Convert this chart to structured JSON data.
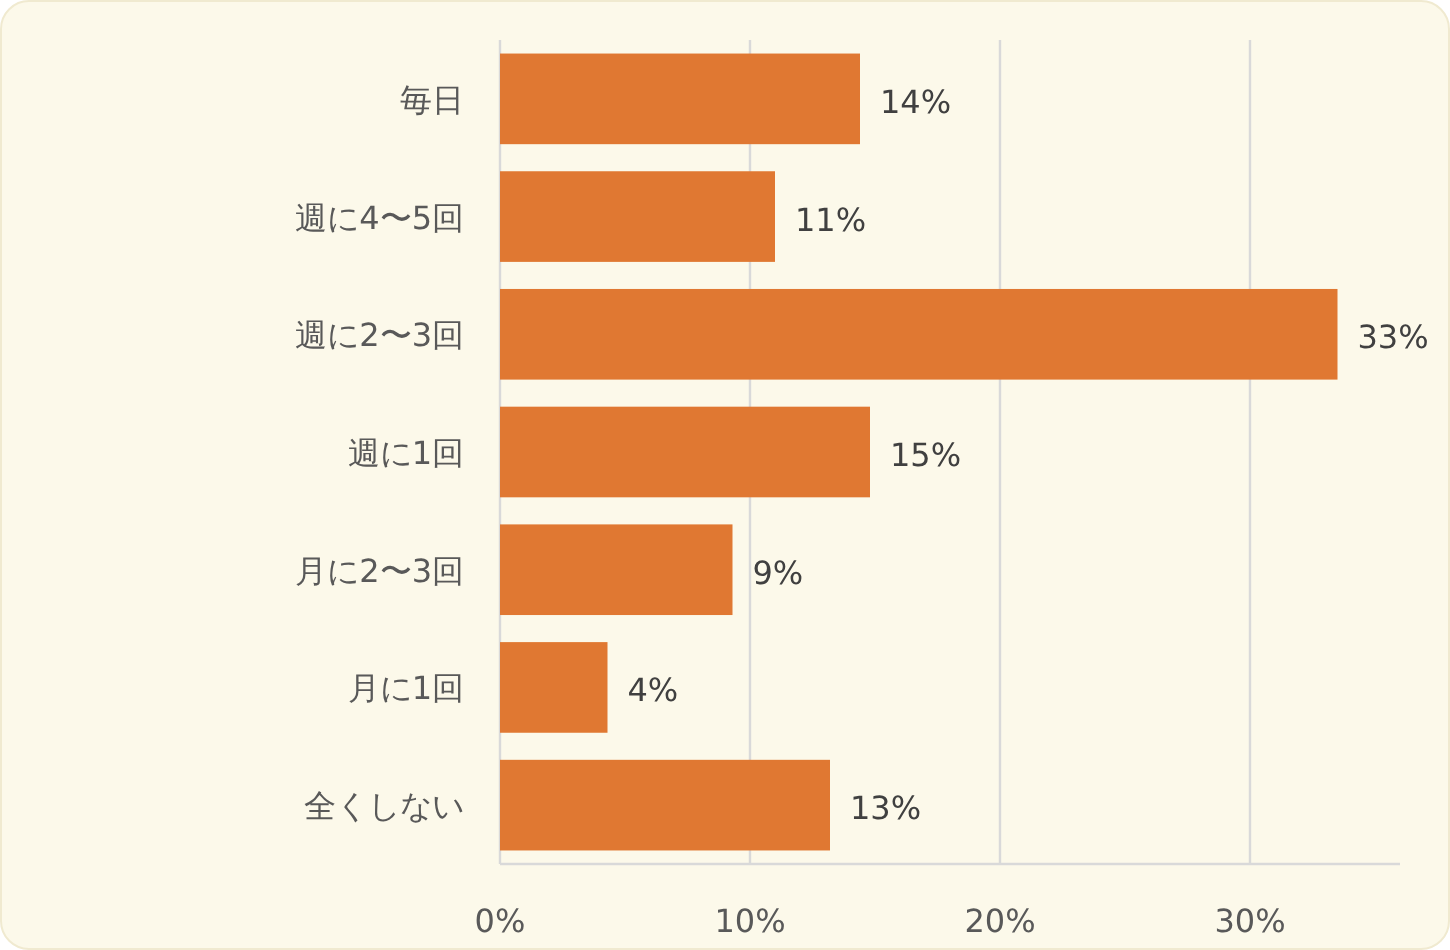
{
  "chart_data": {
    "type": "bar",
    "orientation": "horizontal",
    "categories": [
      "毎日",
      "週に4〜5回",
      "週に2〜3回",
      "週に1回",
      "月に2〜3回",
      "月に1回",
      "全くしない"
    ],
    "values": [
      14.4,
      11.0,
      33.5,
      14.8,
      9.3,
      4.3,
      13.2
    ],
    "value_labels": [
      "14%",
      "11%",
      "33%",
      "15%",
      "9%",
      "4%",
      "13%"
    ],
    "color": "#e07832",
    "xlim": [
      0,
      36
    ],
    "xticks": [
      {
        "value": 0,
        "label": "0%"
      },
      {
        "value": 10,
        "label": "10%"
      },
      {
        "value": 20,
        "label": "20%"
      },
      {
        "value": 30,
        "label": "30%"
      }
    ],
    "grid": "x"
  }
}
